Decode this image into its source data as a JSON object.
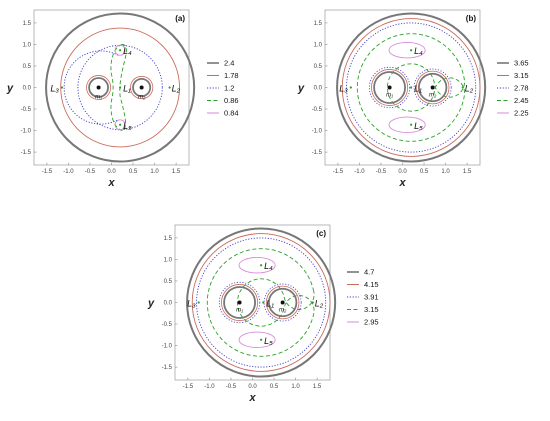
{
  "chart_data": [
    {
      "type": "contour",
      "panel": "(a)",
      "xlabel": "x",
      "ylabel": "y",
      "xlim": [
        -1.8,
        1.8
      ],
      "ylim": [
        -1.8,
        1.8
      ],
      "xticks": [
        "-1.5",
        "-1.0",
        "-0.5",
        "0.0",
        "0.5",
        "1.0",
        "1.5"
      ],
      "yticks": [
        "1.5",
        "1.0",
        "0.5",
        "0.0",
        "-0.5",
        "-1.0",
        "-1.5"
      ],
      "masses": [
        {
          "name": "m1",
          "label": "m₁",
          "x": -0.3,
          "y": 0
        },
        {
          "name": "m2",
          "label": "m₂",
          "x": 0.7,
          "y": 0
        }
      ],
      "points": [
        {
          "label": "L₁",
          "x": 0.2,
          "y": 0
        },
        {
          "label": "L₂",
          "x": 1.35,
          "y": 0
        },
        {
          "label": "L₃",
          "x": -1.15,
          "y": 0
        },
        {
          "label": "L₄",
          "x": 0.2,
          "y": 0.866
        },
        {
          "label": "L₅",
          "x": 0.2,
          "y": -0.866
        }
      ],
      "levels": [
        {
          "value": "2.4",
          "color": "#777777",
          "style": "solid"
        },
        {
          "value": "1.78",
          "color": "#c96a5a",
          "style": "solid"
        },
        {
          "value": "1.2",
          "color": "#3c3cc8",
          "style": "dotted"
        },
        {
          "value": "0.86",
          "color": "#2ca02c",
          "style": "dashed"
        },
        {
          "value": "0.84",
          "color": "#d98bd9",
          "style": "solid"
        }
      ]
    },
    {
      "type": "contour",
      "panel": "(b)",
      "xlabel": "x",
      "ylabel": "y",
      "xlim": [
        -1.8,
        1.8
      ],
      "ylim": [
        -1.8,
        1.8
      ],
      "xticks": [
        "-1.5",
        "-1.0",
        "-0.5",
        "0.0",
        "0.5",
        "1.0",
        "1.5"
      ],
      "yticks": [
        "1.5",
        "1.0",
        "0.5",
        "0.0",
        "-0.5",
        "-1.0",
        "-1.5"
      ],
      "masses": [
        {
          "name": "m1",
          "label": "m₁",
          "x": -0.3,
          "y": 0
        },
        {
          "name": "m2",
          "label": "m₂",
          "x": 0.7,
          "y": 0
        }
      ],
      "points": [
        {
          "label": "L₁",
          "x": 0.2,
          "y": 0
        },
        {
          "label": "L₂",
          "x": 1.4,
          "y": 0
        },
        {
          "label": "L₃",
          "x": -1.2,
          "y": 0
        },
        {
          "label": "L₄",
          "x": 0.2,
          "y": 0.866
        },
        {
          "label": "L₅",
          "x": 0.2,
          "y": -0.866
        }
      ],
      "levels": [
        {
          "value": "3.65",
          "color": "#777777",
          "style": "solid"
        },
        {
          "value": "3.15",
          "color": "#c96a5a",
          "style": "solid"
        },
        {
          "value": "2.78",
          "color": "#3c3cc8",
          "style": "dotted"
        },
        {
          "value": "2.45",
          "color": "#2ca02c",
          "style": "dashed"
        },
        {
          "value": "2.25",
          "color": "#d98bd9",
          "style": "solid"
        }
      ]
    },
    {
      "type": "contour",
      "panel": "(c)",
      "xlabel": "x",
      "ylabel": "y",
      "xlim": [
        -1.8,
        1.8
      ],
      "ylim": [
        -1.8,
        1.8
      ],
      "xticks": [
        "-1.5",
        "-1.0",
        "-0.5",
        "0.0",
        "0.5",
        "1.0",
        "1.5"
      ],
      "yticks": [
        "1.5",
        "1.0",
        "0.5",
        "0.0",
        "-0.5",
        "-1.0",
        "-1.5"
      ],
      "masses": [
        {
          "name": "m1",
          "label": "m₁",
          "x": -0.3,
          "y": 0
        },
        {
          "name": "m2",
          "label": "m₂",
          "x": 0.7,
          "y": 0
        }
      ],
      "points": [
        {
          "label": "L₁",
          "x": 0.25,
          "y": 0
        },
        {
          "label": "L₂",
          "x": 1.4,
          "y": 0
        },
        {
          "label": "L₃",
          "x": -1.25,
          "y": 0
        },
        {
          "label": "L₄",
          "x": 0.2,
          "y": 0.866
        },
        {
          "label": "L₅",
          "x": 0.2,
          "y": -0.866
        }
      ],
      "levels": [
        {
          "value": "4.7",
          "color": "#777777",
          "style": "solid"
        },
        {
          "value": "4.15",
          "color": "#c96a5a",
          "style": "solid"
        },
        {
          "value": "3.91",
          "color": "#3c3cc8",
          "style": "dotted"
        },
        {
          "value": "3.15",
          "color": "#2ca02c",
          "style": "dashed"
        },
        {
          "value": "2.95",
          "color": "#d98bd9",
          "style": "solid"
        }
      ]
    }
  ]
}
